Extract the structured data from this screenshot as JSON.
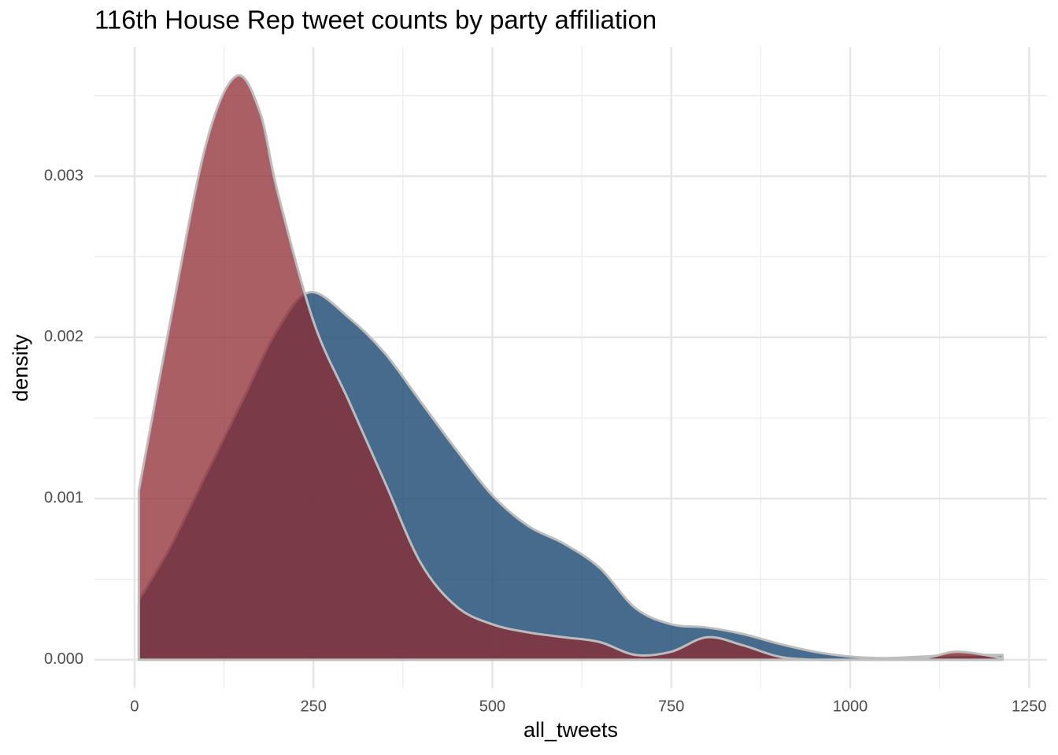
{
  "chart_data": {
    "type": "density",
    "title": "116th House Rep tweet counts by party affiliation",
    "xlabel": "all_tweets",
    "ylabel": "density",
    "xlim": [
      -56,
      1275
    ],
    "ylim": [
      -0.000176,
      0.0038
    ],
    "xticks": [
      0,
      250,
      500,
      750,
      1000,
      1250
    ],
    "yticks": [
      {
        "value": 0,
        "label": "0.000"
      },
      {
        "value": 0.001,
        "label": "0.001"
      },
      {
        "value": 0.002,
        "label": "0.002"
      },
      {
        "value": 0.003,
        "label": "0.003"
      }
    ],
    "xminor": [
      125,
      375,
      625,
      875,
      1125
    ],
    "yminor": [
      0.0005,
      0.0015,
      0.0025,
      0.0035
    ],
    "grid": true,
    "outline": "#bdbdbd",
    "series": [
      {
        "color": "#1d4b73",
        "opacity": 0.82,
        "x": [
          6,
          50,
          100,
          150,
          200,
          245,
          300,
          350,
          400,
          450,
          500,
          550,
          600,
          650,
          700,
          750,
          800,
          850,
          900,
          950,
          1000,
          1050,
          1100,
          1150,
          1213
        ],
        "values": [
          0.00037,
          0.0007,
          0.00115,
          0.0016,
          0.00205,
          0.00228,
          0.00212,
          0.0019,
          0.0016,
          0.0013,
          0.00102,
          0.00083,
          0.00072,
          0.00057,
          0.00032,
          0.00022,
          0.0002,
          0.00016,
          0.0001,
          5e-05,
          2e-05,
          1e-05,
          2e-05,
          3e-05,
          3e-05
        ]
      },
      {
        "color": "#8c2a30",
        "opacity": 0.75,
        "x": [
          6,
          50,
          100,
          142,
          175,
          200,
          250,
          300,
          350,
          400,
          450,
          500,
          550,
          600,
          650,
          700,
          750,
          800,
          850,
          900,
          950,
          1000,
          1100,
          1150,
          1213
        ],
        "values": [
          0.00105,
          0.0021,
          0.0032,
          0.00362,
          0.0034,
          0.0029,
          0.0021,
          0.0016,
          0.0011,
          0.0006,
          0.00033,
          0.00022,
          0.00017,
          0.00014,
          0.00011,
          3e-05,
          5e-05,
          0.00014,
          9e-05,
          2e-05,
          0,
          0,
          1e-05,
          5e-05,
          1e-05
        ]
      }
    ]
  }
}
